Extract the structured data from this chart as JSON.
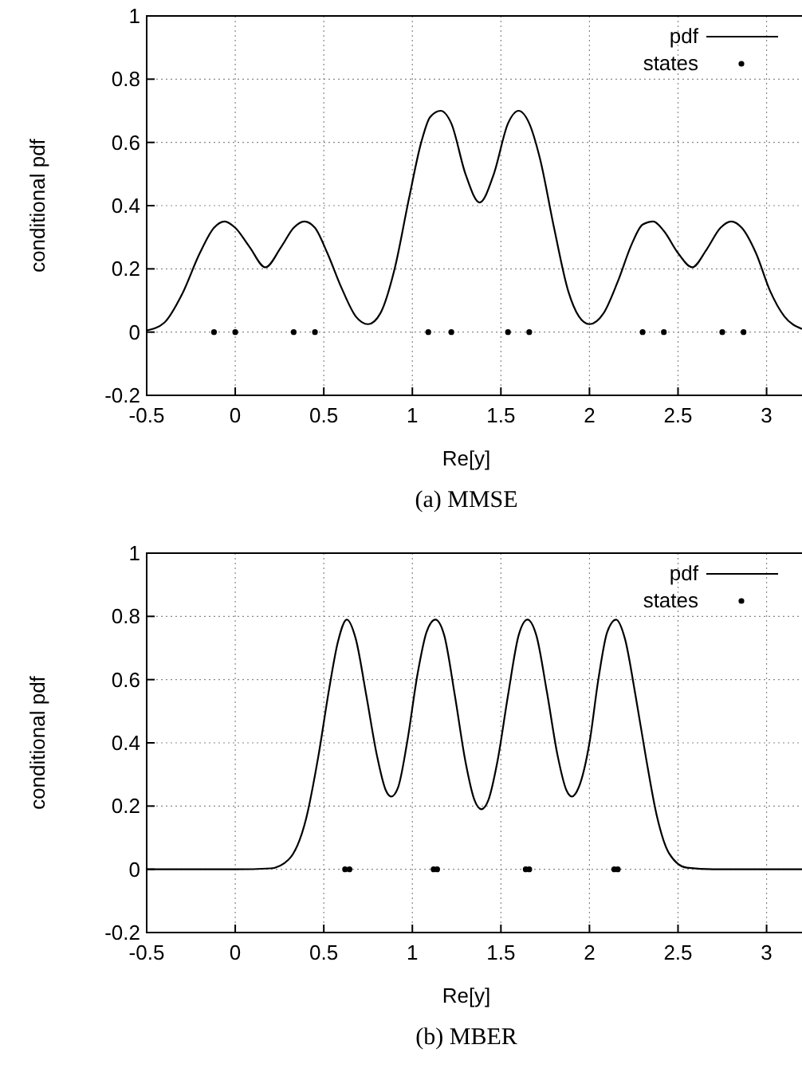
{
  "chart_data": [
    {
      "type": "line",
      "title": "(a) MMSE",
      "xlabel": "Re[y]",
      "ylabel": "conditional pdf",
      "xlim": [
        -0.5,
        3.2
      ],
      "xticks": [
        -0.5,
        0,
        0.5,
        1,
        1.5,
        2,
        2.5,
        3
      ],
      "ylim": [
        -0.2,
        1
      ],
      "yticks": [
        -0.2,
        0,
        0.2,
        0.4,
        0.6,
        0.8,
        1
      ],
      "grid": true,
      "legend": "top right",
      "series": [
        {
          "name": "pdf",
          "color": "#000000",
          "marker": "none",
          "line_style": "solid",
          "x": [
            -0.5,
            -0.4,
            -0.3,
            -0.2,
            -0.12,
            -0.06,
            0,
            0.08,
            0.17,
            0.26,
            0.33,
            0.39,
            0.45,
            0.52,
            0.6,
            0.68,
            0.75,
            0.82,
            0.9,
            0.98,
            1.05,
            1.1,
            1.16,
            1.22,
            1.3,
            1.38,
            1.46,
            1.54,
            1.6,
            1.66,
            1.72,
            1.8,
            1.88,
            1.94,
            2,
            2.08,
            2.16,
            2.24,
            2.3,
            2.36,
            2.42,
            2.5,
            2.58,
            2.66,
            2.74,
            2.8,
            2.86,
            2.94,
            3.02,
            3.1,
            3.2
          ],
          "values": [
            0.005,
            0.03,
            0.12,
            0.25,
            0.33,
            0.35,
            0.33,
            0.27,
            0.205,
            0.27,
            0.33,
            0.35,
            0.33,
            0.25,
            0.14,
            0.05,
            0.025,
            0.06,
            0.2,
            0.42,
            0.6,
            0.68,
            0.7,
            0.66,
            0.5,
            0.41,
            0.5,
            0.66,
            0.7,
            0.66,
            0.55,
            0.33,
            0.13,
            0.05,
            0.025,
            0.06,
            0.16,
            0.28,
            0.34,
            0.35,
            0.32,
            0.25,
            0.205,
            0.26,
            0.33,
            0.35,
            0.33,
            0.25,
            0.13,
            0.05,
            0.01
          ]
        },
        {
          "name": "states",
          "type": "scatter",
          "color": "#000000",
          "marker": "circle",
          "x": [
            -0.12,
            0,
            0.33,
            0.45,
            1.09,
            1.22,
            1.54,
            1.66,
            2.3,
            2.42,
            2.75,
            2.87
          ],
          "values": [
            0,
            0,
            0,
            0,
            0,
            0,
            0,
            0,
            0,
            0,
            0,
            0
          ]
        }
      ]
    },
    {
      "type": "line",
      "title": "(b) MBER",
      "xlabel": "Re[y]",
      "ylabel": "conditional pdf",
      "xlim": [
        -0.5,
        3.2
      ],
      "xticks": [
        -0.5,
        0,
        0.5,
        1,
        1.5,
        2,
        2.5,
        3
      ],
      "ylim": [
        -0.2,
        1
      ],
      "yticks": [
        -0.2,
        0,
        0.2,
        0.4,
        0.6,
        0.8,
        1
      ],
      "grid": true,
      "legend": "top right",
      "series": [
        {
          "name": "pdf",
          "color": "#000000",
          "marker": "none",
          "line_style": "solid",
          "x": [
            -0.5,
            0,
            0.2,
            0.3,
            0.4,
            0.47,
            0.53,
            0.58,
            0.63,
            0.68,
            0.74,
            0.8,
            0.85,
            0.88,
            0.92,
            0.97,
            1.03,
            1.08,
            1.13,
            1.18,
            1.24,
            1.3,
            1.35,
            1.39,
            1.43,
            1.48,
            1.54,
            1.6,
            1.65,
            1.7,
            1.76,
            1.82,
            1.87,
            1.9,
            1.94,
            2,
            2.05,
            2.1,
            2.15,
            2.2,
            2.26,
            2.32,
            2.38,
            2.45,
            2.55,
            2.7,
            3.2
          ],
          "values": [
            0,
            0,
            0.003,
            0.03,
            0.16,
            0.36,
            0.57,
            0.72,
            0.79,
            0.73,
            0.55,
            0.36,
            0.25,
            0.23,
            0.26,
            0.4,
            0.62,
            0.75,
            0.79,
            0.74,
            0.55,
            0.34,
            0.22,
            0.19,
            0.22,
            0.34,
            0.55,
            0.74,
            0.79,
            0.74,
            0.56,
            0.36,
            0.25,
            0.23,
            0.26,
            0.4,
            0.6,
            0.75,
            0.79,
            0.73,
            0.55,
            0.35,
            0.17,
            0.05,
            0.005,
            0,
            0
          ]
        },
        {
          "name": "states",
          "type": "scatter",
          "color": "#000000",
          "marker": "circle",
          "x": [
            0.62,
            0.645,
            1.12,
            1.14,
            1.64,
            1.66,
            2.14,
            2.16
          ],
          "values": [
            0,
            0,
            0,
            0,
            0,
            0,
            0,
            0
          ]
        }
      ]
    }
  ]
}
